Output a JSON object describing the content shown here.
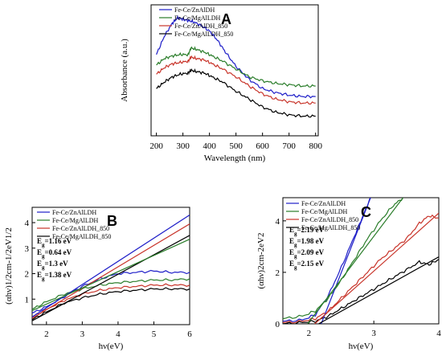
{
  "colors": {
    "blue": "#1f1fc8",
    "green": "#2a7d2a",
    "red": "#c8342a",
    "black": "#000000"
  },
  "chart_data": [
    {
      "id": "A",
      "type": "line",
      "panel_label": "A",
      "xlabel": "Wavelength (nm)",
      "ylabel": "Absorbance (a.u.)",
      "xlim": [
        180,
        810
      ],
      "ylim": [
        0,
        1
      ],
      "xticks": [
        "200",
        "300",
        "400",
        "500",
        "600",
        "700",
        "800"
      ],
      "yticks": [],
      "legend_position": "top-left",
      "series": [
        {
          "name": "Fe-Ce/ZnAlDH",
          "color": "#1f1fc8",
          "x": [
            200,
            230,
            260,
            280,
            300,
            320,
            340,
            370,
            400,
            430,
            460,
            500,
            550,
            600,
            650,
            700,
            750,
            800
          ],
          "y": [
            0.62,
            0.76,
            0.86,
            0.9,
            0.89,
            0.88,
            0.87,
            0.84,
            0.8,
            0.73,
            0.64,
            0.53,
            0.43,
            0.36,
            0.33,
            0.31,
            0.3,
            0.3
          ]
        },
        {
          "name": "Fe-Ce/MgAlLDH",
          "color": "#2a7d2a",
          "x": [
            200,
            230,
            260,
            290,
            320,
            330,
            350,
            380,
            410,
            450,
            500,
            550,
            600,
            650,
            700,
            750,
            800
          ],
          "y": [
            0.54,
            0.59,
            0.61,
            0.62,
            0.62,
            0.67,
            0.66,
            0.64,
            0.61,
            0.57,
            0.51,
            0.45,
            0.42,
            0.4,
            0.39,
            0.38,
            0.38
          ]
        },
        {
          "name": "Fe-Ce/ZnAlDH_850",
          "color": "#c8342a",
          "x": [
            200,
            230,
            260,
            290,
            320,
            330,
            350,
            380,
            410,
            450,
            500,
            550,
            600,
            650,
            700,
            750,
            800
          ],
          "y": [
            0.47,
            0.52,
            0.55,
            0.56,
            0.57,
            0.6,
            0.59,
            0.58,
            0.55,
            0.51,
            0.45,
            0.38,
            0.32,
            0.28,
            0.26,
            0.25,
            0.25
          ]
        },
        {
          "name": "Fe-Ce/MgAlLDH_850",
          "color": "#000000",
          "x": [
            200,
            230,
            260,
            290,
            320,
            330,
            350,
            380,
            410,
            450,
            500,
            550,
            600,
            650,
            700,
            750,
            800
          ],
          "y": [
            0.36,
            0.41,
            0.45,
            0.47,
            0.48,
            0.5,
            0.49,
            0.48,
            0.45,
            0.41,
            0.34,
            0.28,
            0.22,
            0.18,
            0.16,
            0.15,
            0.15
          ]
        }
      ]
    },
    {
      "id": "B",
      "type": "line",
      "panel_label": "B",
      "xlabel": "hν(eV)",
      "ylabel": "(αhν)1/2cm-1/2eV1/2",
      "xlim": [
        1.6,
        6
      ],
      "ylim": [
        0,
        4.6
      ],
      "xticks": [
        "2",
        "3",
        "4",
        "5",
        "6"
      ],
      "yticks": [
        "1",
        "2",
        "3",
        "4"
      ],
      "legend_position": "top-left",
      "annotations": [
        "Eg=1.16 eV",
        "Eg=0.64 eV",
        "Eg=1.3 eV",
        "Eg=1.38 eV"
      ],
      "series": [
        {
          "name": "Fe-Ce/ZnAlLDH",
          "color": "#1f1fc8",
          "x": [
            1.6,
            2.0,
            2.5,
            3.0,
            3.5,
            4.0,
            4.5,
            5.0,
            5.5,
            6.0
          ],
          "y": [
            0.45,
            0.7,
            1.1,
            1.5,
            1.8,
            2.0,
            2.05,
            2.1,
            2.05,
            2.05
          ]
        },
        {
          "name": "Fe-Ce/MgAlLDH",
          "color": "#2a7d2a",
          "x": [
            1.6,
            2.0,
            2.5,
            3.0,
            3.5,
            4.0,
            4.5,
            5.0,
            5.5,
            6.0
          ],
          "y": [
            0.6,
            0.9,
            1.2,
            1.4,
            1.55,
            1.65,
            1.7,
            1.75,
            1.75,
            1.8
          ]
        },
        {
          "name": "Fe-Ce/ZnAlLDH_850",
          "color": "#c8342a",
          "x": [
            1.6,
            2.0,
            2.5,
            3.0,
            3.5,
            4.0,
            4.5,
            5.0,
            5.5,
            6.0
          ],
          "y": [
            0.3,
            0.6,
            0.95,
            1.2,
            1.35,
            1.45,
            1.5,
            1.55,
            1.55,
            1.55
          ]
        },
        {
          "name": "Fe-Ce/MgAlLDH_850",
          "color": "#000000",
          "x": [
            1.6,
            2.0,
            2.5,
            3.0,
            3.5,
            4.0,
            4.5,
            5.0,
            5.5,
            6.0
          ],
          "y": [
            0.2,
            0.5,
            0.85,
            1.05,
            1.2,
            1.3,
            1.35,
            1.4,
            1.4,
            1.4
          ]
        }
      ],
      "fit_lines": [
        {
          "color": "#1f1fc8",
          "x": [
            1.6,
            6.0
          ],
          "y": [
            0.3,
            4.3
          ]
        },
        {
          "color": "#c8342a",
          "x": [
            1.6,
            6.0
          ],
          "y": [
            0.25,
            3.95
          ]
        },
        {
          "color": "#000000",
          "x": [
            1.6,
            6.0
          ],
          "y": [
            0.15,
            3.5
          ]
        },
        {
          "color": "#2a7d2a",
          "x": [
            1.6,
            6.0
          ],
          "y": [
            0.55,
            3.35
          ]
        }
      ]
    },
    {
      "id": "C",
      "type": "line",
      "panel_label": "C",
      "xlabel": "hν(eV)",
      "ylabel": "(αhν)2cm-2eV2",
      "xlim": [
        1.6,
        4
      ],
      "ylim": [
        0,
        4.9
      ],
      "xticks": [
        "2",
        "3",
        "4"
      ],
      "yticks": [
        "0",
        "2",
        "4"
      ],
      "legend_position": "top-left",
      "annotations": [
        "Eg=2.19 eV",
        "Eg=1.98 eV",
        "Eg=2.09 eV",
        "Eg=2.15 eV"
      ],
      "series": [
        {
          "name": "Fe-Ce/ZnAlLDH",
          "color": "#1f1fc8",
          "x": [
            1.6,
            1.9,
            2.1,
            2.3,
            2.5,
            2.7,
            2.85,
            2.95
          ],
          "y": [
            0.1,
            0.15,
            0.35,
            1.1,
            2.2,
            3.4,
            4.3,
            4.9
          ]
        },
        {
          "name": "Fe-Ce/MgAlLDH",
          "color": "#2a7d2a",
          "x": [
            1.6,
            1.9,
            2.1,
            2.3,
            2.5,
            2.7,
            2.9,
            3.1,
            3.3,
            3.45
          ],
          "y": [
            0.2,
            0.3,
            0.5,
            1.0,
            1.7,
            2.5,
            3.3,
            4.0,
            4.6,
            4.9
          ]
        },
        {
          "name": "Fe-Ce/ZnAlLDH_850",
          "color": "#c8342a",
          "x": [
            1.6,
            1.9,
            2.1,
            2.3,
            2.5,
            2.7,
            2.9,
            3.1,
            3.3,
            3.5,
            3.7,
            3.85,
            4.0
          ],
          "y": [
            0.05,
            0.1,
            0.2,
            0.5,
            1.0,
            1.5,
            2.0,
            2.5,
            2.9,
            3.3,
            3.9,
            4.2,
            4.1
          ]
        },
        {
          "name": "Fe-Ce/MgAlLDH_850",
          "color": "#000000",
          "x": [
            1.6,
            1.9,
            2.1,
            2.3,
            2.5,
            2.7,
            2.9,
            3.1,
            3.3,
            3.5,
            3.7,
            3.85,
            4.0
          ],
          "y": [
            0.0,
            0.05,
            0.1,
            0.3,
            0.6,
            0.9,
            1.2,
            1.5,
            1.8,
            2.1,
            2.4,
            2.3,
            2.5
          ]
        }
      ],
      "fit_lines": [
        {
          "color": "#1f1fc8",
          "x": [
            2.19,
            2.95
          ],
          "y": [
            0,
            4.9
          ]
        },
        {
          "color": "#2a7d2a",
          "x": [
            1.98,
            3.45
          ],
          "y": [
            0,
            4.9
          ]
        },
        {
          "color": "#c8342a",
          "x": [
            2.09,
            4.0
          ],
          "y": [
            0,
            4.3
          ]
        },
        {
          "color": "#000000",
          "x": [
            2.15,
            4.0
          ],
          "y": [
            0,
            2.6
          ]
        }
      ]
    }
  ]
}
